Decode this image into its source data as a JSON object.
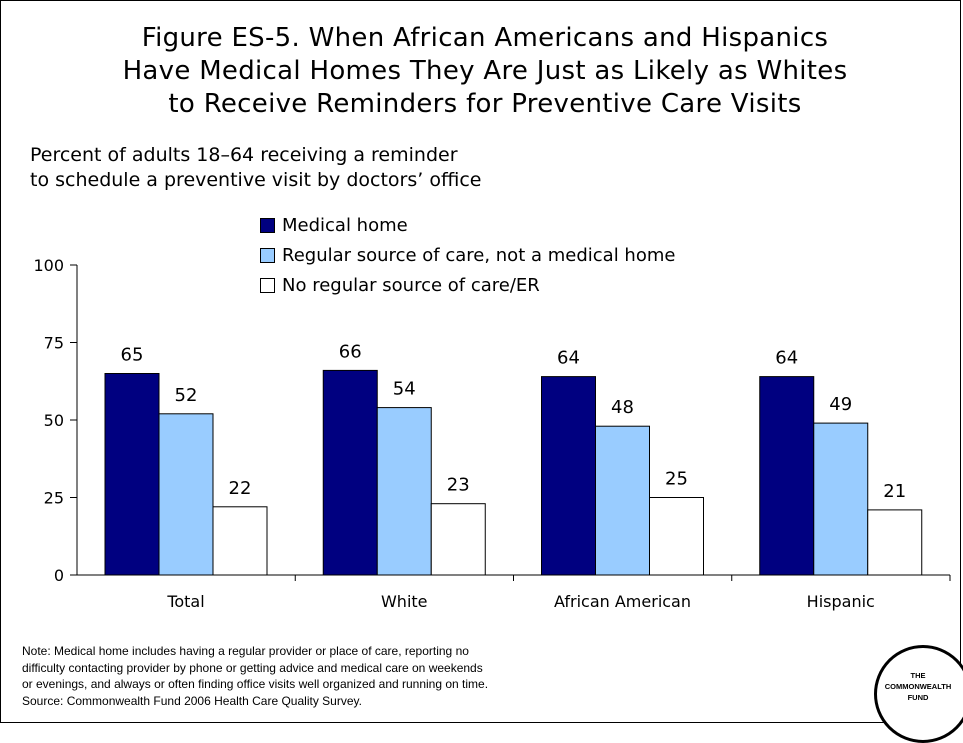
{
  "chart_data": {
    "type": "bar",
    "title": "Figure ES-5. When African Americans and Hispanics Have Medical Homes They Are Just as Likely as Whites to Receive Reminders for Preventive Care Visits",
    "title_lines": [
      "Figure ES-5. When African Americans and Hispanics",
      "Have Medical Homes They Are Just as Likely as Whites",
      "to Receive Reminders for Preventive Care Visits"
    ],
    "ylabel_lines": [
      "Percent of adults 18–64 receiving a reminder",
      "to schedule a preventive visit by doctors’ office"
    ],
    "categories": [
      "Total",
      "White",
      "African American",
      "Hispanic"
    ],
    "series": [
      {
        "name": "Medical home",
        "values": [
          65,
          66,
          64,
          64
        ],
        "color": "#000080"
      },
      {
        "name": "Regular source of care, not a medical home",
        "values": [
          52,
          54,
          48,
          49
        ],
        "color": "#99ccff"
      },
      {
        "name": "No regular source of care/ER",
        "values": [
          22,
          23,
          25,
          21
        ],
        "color": "#ffffff"
      }
    ],
    "yticks": [
      "0",
      "25",
      "50",
      "75",
      "100"
    ],
    "ylim": [
      0,
      100
    ],
    "grid": false,
    "legend_position": "top-center"
  },
  "note_lines": [
    "Note: Medical home includes having a regular provider or place of care, reporting no",
    "difficulty contacting provider by phone or getting advice and medical care on weekends",
    "or evenings, and always or often finding office visits well organized and running on time.",
    "Source: Commonwealth Fund 2006 Health Care Quality Survey."
  ],
  "logo": {
    "lines": [
      "THE",
      "COMMONWEALTH",
      "FUND"
    ]
  }
}
